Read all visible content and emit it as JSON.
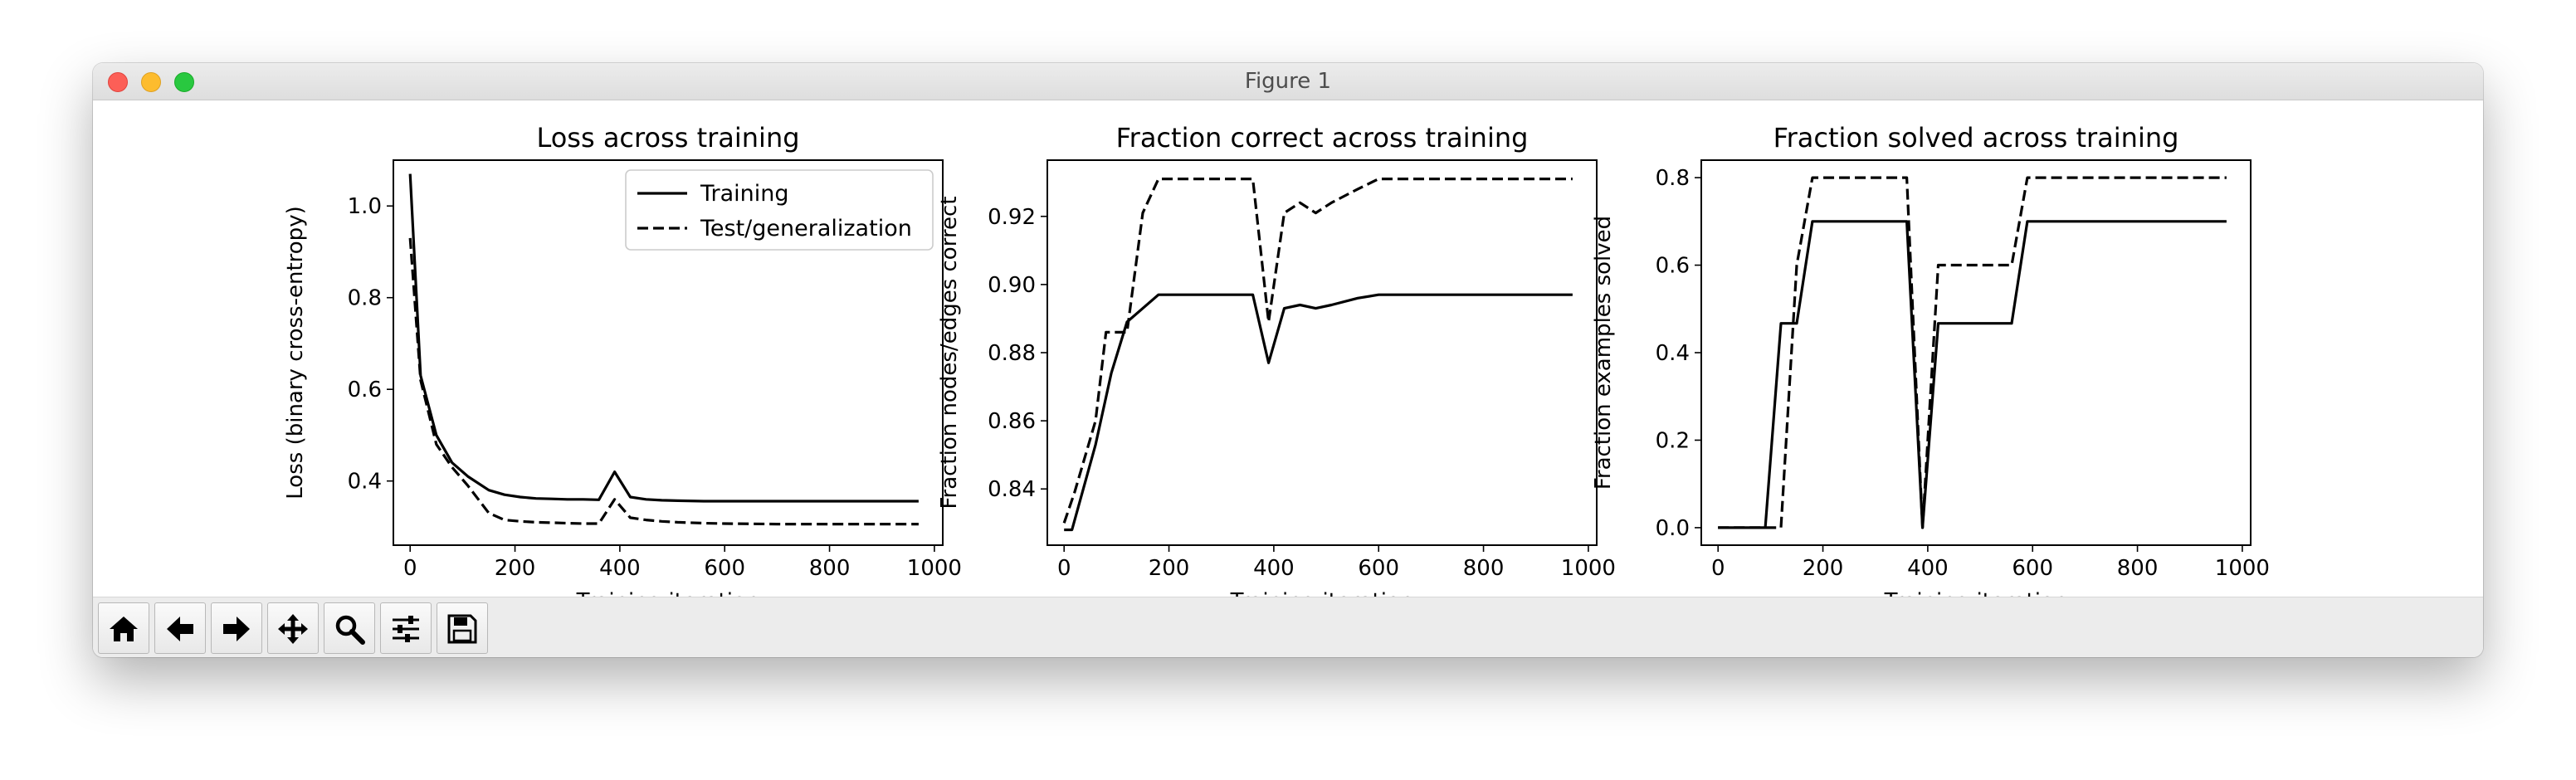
{
  "window": {
    "title": "Figure 1"
  },
  "toolbar": {
    "buttons": [
      {
        "name": "home-button",
        "icon": "home-icon"
      },
      {
        "name": "back-button",
        "icon": "arrow-left-icon"
      },
      {
        "name": "forward-button",
        "icon": "arrow-right-icon"
      },
      {
        "name": "pan-button",
        "icon": "move-icon"
      },
      {
        "name": "zoom-button",
        "icon": "magnifier-icon"
      },
      {
        "name": "configure-subplots-button",
        "icon": "sliders-icon"
      },
      {
        "name": "save-button",
        "icon": "floppy-disk-icon"
      }
    ]
  },
  "chart_data": [
    {
      "type": "line",
      "title": "Loss across training",
      "xlabel": "Training iteration",
      "ylabel": "Loss (binary cross-entropy)",
      "xlim": [
        -32,
        1016
      ],
      "ylim": [
        0.26,
        1.1
      ],
      "xticks": [
        0,
        200,
        400,
        600,
        800,
        1000
      ],
      "yticks": [
        0.4,
        0.6,
        0.8,
        1.0
      ],
      "ytick_labels": [
        "0.4",
        "0.6",
        "0.8",
        "1.0"
      ],
      "legend_position": "top-right",
      "series": [
        {
          "name": "Training",
          "style": "solid",
          "x": [
            0,
            20,
            50,
            80,
            110,
            150,
            180,
            210,
            240,
            270,
            300,
            330,
            360,
            390,
            420,
            450,
            480,
            510,
            560,
            600,
            700,
            800,
            900,
            970
          ],
          "y": [
            1.07,
            0.63,
            0.5,
            0.44,
            0.41,
            0.38,
            0.37,
            0.365,
            0.362,
            0.361,
            0.36,
            0.36,
            0.359,
            0.42,
            0.365,
            0.36,
            0.358,
            0.357,
            0.356,
            0.356,
            0.356,
            0.356,
            0.356,
            0.356
          ]
        },
        {
          "name": "Test/generalization",
          "style": "dashed",
          "x": [
            0,
            20,
            50,
            80,
            110,
            150,
            180,
            210,
            240,
            270,
            300,
            330,
            360,
            390,
            420,
            450,
            480,
            510,
            560,
            600,
            700,
            800,
            900,
            970
          ],
          "y": [
            0.93,
            0.62,
            0.48,
            0.43,
            0.39,
            0.33,
            0.315,
            0.312,
            0.31,
            0.309,
            0.308,
            0.307,
            0.307,
            0.36,
            0.32,
            0.315,
            0.312,
            0.31,
            0.308,
            0.307,
            0.306,
            0.306,
            0.306,
            0.306
          ]
        }
      ]
    },
    {
      "type": "line",
      "title": "Fraction correct across training",
      "xlabel": "Training iteration",
      "ylabel": "Fraction nodes/edges correct",
      "xlim": [
        -32,
        1016
      ],
      "ylim": [
        0.8235,
        0.9365
      ],
      "xticks": [
        0,
        200,
        400,
        600,
        800,
        1000
      ],
      "yticks": [
        0.84,
        0.86,
        0.88,
        0.9,
        0.92
      ],
      "ytick_labels": [
        "0.84",
        "0.86",
        "0.88",
        "0.90",
        "0.92"
      ],
      "series": [
        {
          "name": "Training",
          "style": "solid",
          "x": [
            0,
            15,
            60,
            90,
            120,
            150,
            180,
            210,
            240,
            270,
            300,
            330,
            360,
            390,
            420,
            450,
            480,
            510,
            560,
            600,
            700,
            800,
            900,
            970
          ],
          "y": [
            0.828,
            0.828,
            0.853,
            0.874,
            0.889,
            0.893,
            0.897,
            0.897,
            0.897,
            0.897,
            0.897,
            0.897,
            0.897,
            0.877,
            0.893,
            0.894,
            0.893,
            0.894,
            0.896,
            0.897,
            0.897,
            0.897,
            0.897,
            0.897
          ]
        },
        {
          "name": "Test/generalization",
          "style": "dashed",
          "x": [
            0,
            20,
            60,
            80,
            120,
            150,
            180,
            210,
            240,
            270,
            300,
            330,
            360,
            390,
            420,
            450,
            480,
            510,
            560,
            600,
            700,
            800,
            900,
            970
          ],
          "y": [
            0.83,
            0.839,
            0.86,
            0.886,
            0.886,
            0.921,
            0.931,
            0.931,
            0.931,
            0.931,
            0.931,
            0.931,
            0.931,
            0.889,
            0.921,
            0.924,
            0.921,
            0.924,
            0.928,
            0.931,
            0.931,
            0.931,
            0.931,
            0.931
          ]
        }
      ]
    },
    {
      "type": "line",
      "title": "Fraction solved across training",
      "xlabel": "Training iteration",
      "ylabel": "Fraction examples solved",
      "xlim": [
        -32,
        1016
      ],
      "ylim": [
        -0.04,
        0.84
      ],
      "xticks": [
        0,
        200,
        400,
        600,
        800,
        1000
      ],
      "yticks": [
        0.0,
        0.2,
        0.4,
        0.6,
        0.8
      ],
      "ytick_labels": [
        "0.0",
        "0.2",
        "0.4",
        "0.6",
        "0.8"
      ],
      "series": [
        {
          "name": "Training",
          "style": "solid",
          "x": [
            0,
            90,
            120,
            150,
            180,
            210,
            240,
            270,
            300,
            330,
            360,
            390,
            420,
            450,
            480,
            510,
            560,
            590,
            700,
            800,
            900,
            970
          ],
          "y": [
            0.0,
            0.0,
            0.467,
            0.467,
            0.7,
            0.7,
            0.7,
            0.7,
            0.7,
            0.7,
            0.7,
            0.0,
            0.467,
            0.467,
            0.467,
            0.467,
            0.467,
            0.7,
            0.7,
            0.7,
            0.7,
            0.7
          ]
        },
        {
          "name": "Test/generalization",
          "style": "dashed",
          "x": [
            0,
            120,
            150,
            180,
            210,
            240,
            270,
            300,
            330,
            360,
            390,
            420,
            450,
            480,
            510,
            540,
            560,
            590,
            700,
            800,
            900,
            970
          ],
          "y": [
            0.0,
            0.0,
            0.6,
            0.8,
            0.8,
            0.8,
            0.8,
            0.8,
            0.8,
            0.8,
            0.0,
            0.6,
            0.6,
            0.6,
            0.6,
            0.6,
            0.6,
            0.8,
            0.8,
            0.8,
            0.8,
            0.8
          ]
        }
      ]
    }
  ]
}
